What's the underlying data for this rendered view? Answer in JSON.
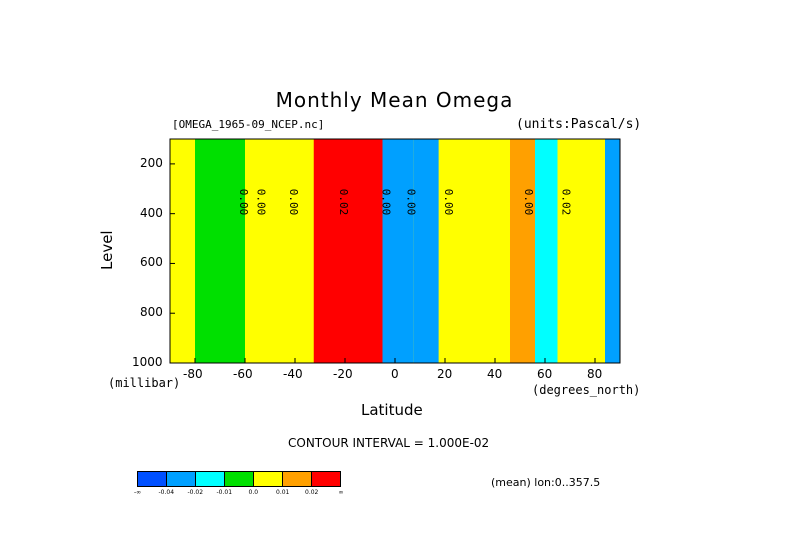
{
  "chart_data": {
    "type": "heatmap",
    "title": "Monthly Mean Omega",
    "dataset_label": "[OMEGA_1965-09_NCEP.nc]",
    "units_label": "(units:Pascal/s)",
    "xlabel": "Latitude",
    "ylabel": "Level",
    "xunit_label": "(degrees_north)",
    "yunit_label": "(millibar)",
    "xlim": [
      -90,
      90
    ],
    "ylim": [
      1000,
      100
    ],
    "x_ticks": [
      "-80",
      "-60",
      "-40",
      "-20",
      "0",
      "20",
      "40",
      "60",
      "80"
    ],
    "y_ticks": [
      "200",
      "400",
      "600",
      "800",
      "1000"
    ],
    "contour_interval_text": "CONTOUR INTERVAL = 1.000E-02",
    "mean_text": "(mean) lon:0..357.5",
    "contour_labels": [
      "0.00",
      "0.00",
      "0.00",
      "0.02",
      "0.00",
      "0.00",
      "0.00",
      "0.00",
      "0.02"
    ],
    "colorbar": {
      "labels": [
        "-∞",
        "-0.04",
        "-0.02",
        "-0.01",
        "0.0",
        "0.01",
        "0.02",
        "∞"
      ],
      "colors": [
        "#0050ff",
        "#00a0ff",
        "#00ffff",
        "#00e000",
        "#ffff00",
        "#ffa000",
        "#ff0000"
      ]
    },
    "bands": [
      {
        "lat": -90,
        "value": 0.0
      },
      {
        "lat": -70,
        "value": -0.01
      },
      {
        "lat": -50,
        "value": 0.0
      },
      {
        "lat": -40,
        "value": 0.0
      },
      {
        "lat": -25,
        "value": 0.02
      },
      {
        "lat": -15,
        "value": 0.02
      },
      {
        "lat": 5,
        "value": -0.03
      },
      {
        "lat": 10,
        "value": -0.03
      },
      {
        "lat": 25,
        "value": 0.0
      },
      {
        "lat": 40,
        "value": 0.0
      },
      {
        "lat": 52,
        "value": 0.01
      },
      {
        "lat": 60,
        "value": -0.02
      },
      {
        "lat": 70,
        "value": 0.0
      },
      {
        "lat": 80,
        "value": 0.0
      },
      {
        "lat": 88,
        "value": -0.03
      }
    ]
  }
}
